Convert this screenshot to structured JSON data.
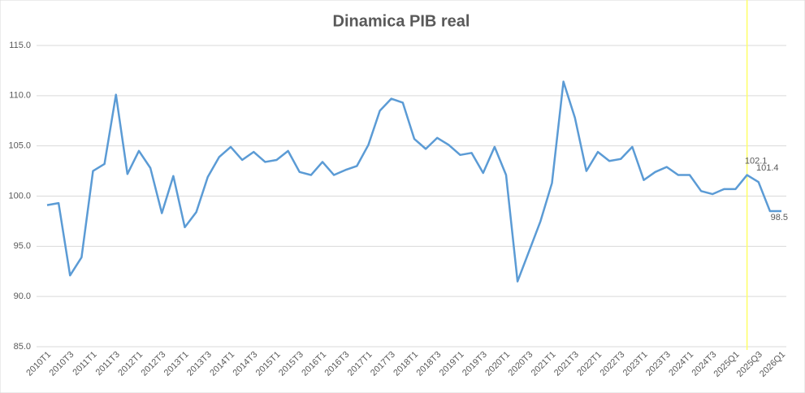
{
  "chart_data": {
    "type": "line",
    "title": "Dinamica PIB real",
    "categories": [
      "2010T1",
      null,
      "2010T3",
      null,
      "2011T1",
      null,
      "2011T3",
      null,
      "2012T1",
      null,
      "2012T3",
      null,
      "2013T1",
      null,
      "2013T3",
      null,
      "2014T1",
      null,
      "2014T3",
      null,
      "2015T1",
      null,
      "2015T3",
      null,
      "2016T1",
      null,
      "2016T3",
      null,
      "2017T1",
      null,
      "2017T3",
      null,
      "2018T1",
      null,
      "2018T3",
      null,
      "2019T1",
      null,
      "2019T3",
      null,
      "2020T1",
      null,
      "2020T3",
      null,
      "2021T1",
      null,
      "2021T3",
      null,
      "2022T1",
      null,
      "2022T3",
      null,
      "2023T1",
      null,
      "2023T3",
      null,
      "2024T1",
      null,
      "2024T3",
      null,
      "2025Q1",
      null,
      "2025Q3",
      null,
      "2026Q1"
    ],
    "series": [
      {
        "name": "PIB real",
        "color": "#5b9bd5",
        "values": [
          99.1,
          99.3,
          92.1,
          93.9,
          102.5,
          103.2,
          110.1,
          102.2,
          104.5,
          102.8,
          98.3,
          102.0,
          96.9,
          98.4,
          101.9,
          103.9,
          104.9,
          103.6,
          104.4,
          103.4,
          103.6,
          104.5,
          102.4,
          102.1,
          103.4,
          102.1,
          102.6,
          103.0,
          105.1,
          108.5,
          109.7,
          109.3,
          105.7,
          104.7,
          105.8,
          105.1,
          104.1,
          104.3,
          102.3,
          104.9,
          102.1,
          91.5,
          94.5,
          97.5,
          101.3,
          111.4,
          107.8,
          102.5,
          104.4,
          103.5,
          103.7,
          104.9,
          101.6,
          102.4,
          102.9,
          102.1,
          102.1,
          100.5,
          100.2,
          100.7,
          100.7,
          102.1,
          101.4,
          98.5,
          98.5
        ]
      }
    ],
    "data_labels_at": [
      61,
      62,
      64
    ],
    "highlight_line": {
      "category_index": 61,
      "color": "#ffff66"
    },
    "ylim": [
      85,
      115
    ],
    "yticks": [
      {
        "value": 85,
        "label": "85.0"
      },
      {
        "value": 90,
        "label": "90.0"
      },
      {
        "value": 95,
        "label": "95.0"
      },
      {
        "value": 100,
        "label": "100.0"
      },
      {
        "value": 105,
        "label": "105.0"
      },
      {
        "value": 110,
        "label": "110.0"
      },
      {
        "value": 115,
        "label": "115.0"
      }
    ],
    "grid": true
  }
}
